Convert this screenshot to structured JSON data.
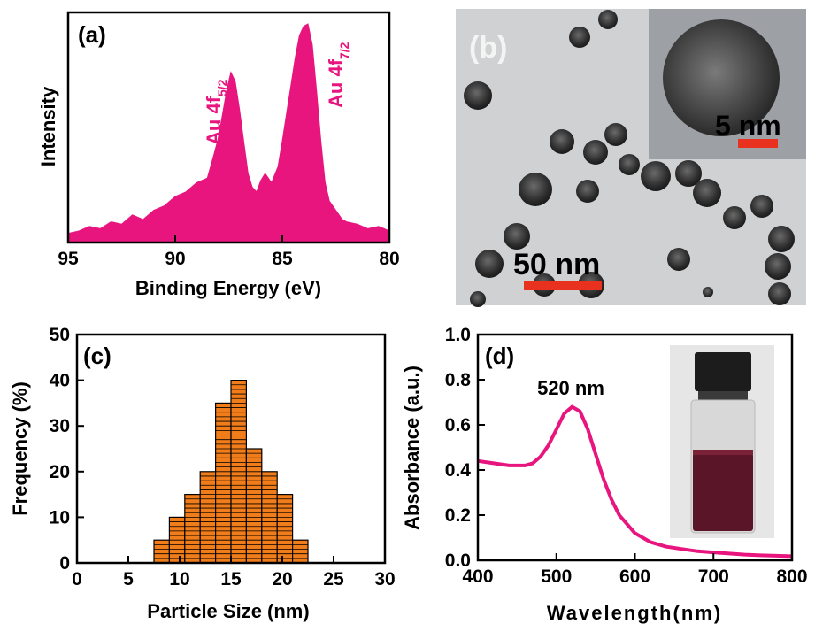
{
  "colors": {
    "xps": "#e8157f",
    "hist": "#f07c1a",
    "abs": "#e8157f",
    "scalebar": "#e8321f",
    "inset_label": "#ffffff"
  },
  "chart_data": [
    {
      "panel": "(a)",
      "type": "area",
      "xlabel": "Binding Energy (eV)",
      "ylabel": "Intensity",
      "xlim": [
        95,
        80
      ],
      "xticks": [
        "95",
        "90",
        "85",
        "80"
      ],
      "x_reversed": true,
      "peaks": [
        {
          "label": "Au 4f",
          "sub": "5/2",
          "x": 87.4,
          "rel_height": 0.75
        },
        {
          "label": "Au 4f",
          "sub": "7/2",
          "x": 83.8,
          "rel_height": 0.95
        }
      ],
      "x": [
        95,
        94.5,
        94,
        93.5,
        93,
        92.5,
        92,
        91.5,
        91,
        90.5,
        90,
        89.5,
        89,
        88.5,
        88.2,
        88,
        87.8,
        87.6,
        87.4,
        87.2,
        87,
        86.8,
        86.6,
        86.4,
        86.2,
        86,
        85.8,
        85.5,
        85.2,
        85,
        84.8,
        84.6,
        84.4,
        84.2,
        84,
        83.8,
        83.6,
        83.4,
        83.2,
        83,
        82.8,
        82.5,
        82.2,
        82,
        81.5,
        81,
        80.5,
        80
      ],
      "y": [
        0.04,
        0.05,
        0.07,
        0.06,
        0.09,
        0.08,
        0.12,
        0.1,
        0.14,
        0.16,
        0.2,
        0.22,
        0.26,
        0.28,
        0.38,
        0.45,
        0.55,
        0.66,
        0.74,
        0.7,
        0.58,
        0.44,
        0.3,
        0.24,
        0.22,
        0.27,
        0.3,
        0.26,
        0.33,
        0.44,
        0.56,
        0.68,
        0.8,
        0.9,
        0.94,
        0.95,
        0.86,
        0.66,
        0.44,
        0.26,
        0.18,
        0.14,
        0.1,
        0.09,
        0.08,
        0.06,
        0.07,
        0.05
      ]
    },
    {
      "panel": "(c)",
      "type": "bar",
      "xlabel": "Particle Size (nm)",
      "ylabel": "Frequency (%)",
      "xlim": [
        0,
        30
      ],
      "ylim": [
        0,
        50
      ],
      "xticks": [
        "0",
        "5",
        "10",
        "15",
        "20",
        "25",
        "30"
      ],
      "yticks": [
        "0",
        "10",
        "20",
        "30",
        "40",
        "50"
      ],
      "bin_width": 1.5,
      "bin_starts": [
        7.5,
        9,
        10.5,
        12,
        13.5,
        15,
        16.5,
        18,
        19.5,
        21
      ],
      "values": [
        5,
        10,
        15,
        20,
        35,
        40,
        25,
        20,
        15,
        5
      ]
    },
    {
      "panel": "(d)",
      "type": "line",
      "xlabel": "Wavelength(nm)",
      "ylabel": "Absorbance (a.u.)",
      "xlim": [
        400,
        800
      ],
      "ylim": [
        0.0,
        1.0
      ],
      "xticks": [
        "400",
        "500",
        "600",
        "700",
        "800"
      ],
      "yticks": [
        "0.0",
        "0.2",
        "0.4",
        "0.6",
        "0.8",
        "1.0"
      ],
      "annotation": "520 nm",
      "x": [
        400,
        420,
        440,
        460,
        470,
        480,
        490,
        500,
        510,
        520,
        530,
        540,
        550,
        560,
        570,
        580,
        600,
        620,
        640,
        660,
        680,
        700,
        720,
        740,
        760,
        780,
        800
      ],
      "y": [
        0.44,
        0.43,
        0.42,
        0.42,
        0.43,
        0.46,
        0.51,
        0.58,
        0.65,
        0.68,
        0.66,
        0.58,
        0.47,
        0.36,
        0.27,
        0.2,
        0.12,
        0.08,
        0.06,
        0.05,
        0.04,
        0.035,
        0.03,
        0.025,
        0.022,
        0.02,
        0.018
      ]
    }
  ],
  "panel_b": {
    "label": "(b)",
    "scale_main": "50 nm",
    "scale_inset": "5 nm"
  }
}
